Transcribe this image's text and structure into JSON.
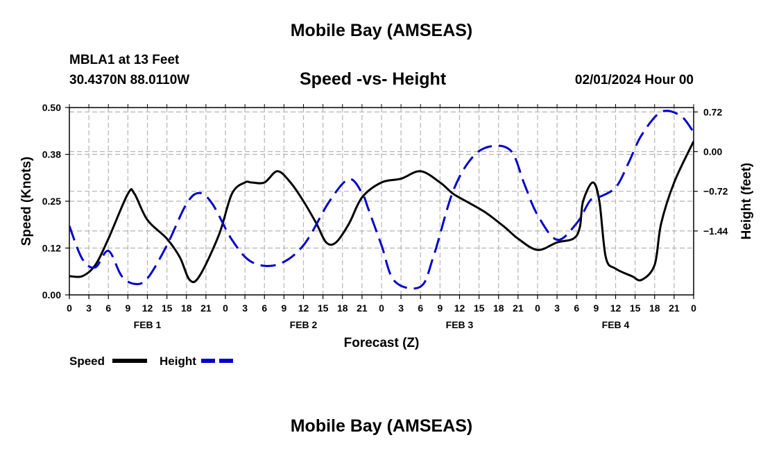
{
  "header": {
    "title": "Mobile Bay (AMSEAS)",
    "station": "MBLA1 at 13 Feet",
    "coordinates": "30.4370N  88.0110W",
    "subtitle": "Speed -vs- Height",
    "run_time": "02/01/2024 Hour 00"
  },
  "footer": {
    "title": "Mobile Bay (AMSEAS)"
  },
  "colors": {
    "speed": "#000000",
    "height": "#0000cc",
    "grid": "#b4b4b4"
  },
  "chart_data": {
    "type": "line",
    "title": "Speed -vs- Height",
    "xlabel": "Forecast (Z)",
    "ylabel": "Speed (Knots)",
    "y2label": "Height (feet)",
    "x_range_hours": [
      0,
      96
    ],
    "x_tick_labels": [
      "0",
      "3",
      "6",
      "9",
      "12",
      "15",
      "18",
      "21",
      "0",
      "3",
      "6",
      "9",
      "12",
      "15",
      "18",
      "21",
      "0",
      "3",
      "6",
      "9",
      "12",
      "15",
      "18",
      "21",
      "0",
      "3",
      "6",
      "9",
      "12",
      "15",
      "18",
      "21",
      "0"
    ],
    "day_labels": [
      {
        "label": "FEB 1",
        "hour": 12
      },
      {
        "label": "FEB 2",
        "hour": 36
      },
      {
        "label": "FEB 3",
        "hour": 60
      },
      {
        "label": "FEB 4",
        "hour": 84
      }
    ],
    "ylim": [
      0,
      0.5
    ],
    "y_ticks": [
      0.0,
      0.125,
      0.25,
      0.375,
      0.5
    ],
    "y_tick_labels": [
      "0.00",
      "0.12",
      "0.25",
      "0.38",
      "0.50"
    ],
    "y2lim": [
      -2.6,
      0.8
    ],
    "y2_ticks": [
      -1.44,
      -0.72,
      0.0,
      0.72
    ],
    "y2_tick_labels": [
      "−1.44",
      "−0.72",
      "0.00",
      "0.72"
    ],
    "series": [
      {
        "name": "Speed",
        "axis": "left",
        "style": "solid",
        "x": [
          0,
          2,
          4,
          6,
          9,
          10,
          12,
          15,
          17,
          18.5,
          20,
          23,
          25,
          27,
          28,
          30,
          32,
          34,
          36,
          38,
          39.5,
          41,
          43,
          45,
          48,
          51,
          54,
          57,
          59,
          61,
          64,
          67,
          69,
          72,
          75,
          77.5,
          78.5,
          79,
          80.5,
          81.5,
          82.5,
          84,
          86.5,
          88,
          90,
          91,
          93,
          96
        ],
        "values": [
          0.05,
          0.05,
          0.08,
          0.15,
          0.27,
          0.27,
          0.2,
          0.15,
          0.1,
          0.04,
          0.05,
          0.16,
          0.27,
          0.3,
          0.3,
          0.3,
          0.33,
          0.3,
          0.25,
          0.19,
          0.14,
          0.14,
          0.19,
          0.26,
          0.3,
          0.31,
          0.33,
          0.3,
          0.27,
          0.25,
          0.22,
          0.18,
          0.15,
          0.12,
          0.14,
          0.15,
          0.18,
          0.25,
          0.3,
          0.25,
          0.1,
          0.07,
          0.05,
          0.04,
          0.08,
          0.19,
          0.3,
          0.41
        ]
      },
      {
        "name": "Height",
        "axis": "right",
        "style": "dashed",
        "x": [
          0,
          2,
          4,
          6,
          8,
          10,
          12,
          15,
          18,
          20,
          22,
          25,
          28,
          32,
          36,
          40,
          43,
          45,
          46,
          48,
          50,
          54,
          56,
          59,
          62,
          65,
          68,
          70,
          72,
          75,
          78,
          80,
          81,
          84,
          86,
          88,
          91,
          94,
          96
        ],
        "values": [
          -1.35,
          -1.95,
          -2.1,
          -1.8,
          -2.25,
          -2.4,
          -2.3,
          -1.7,
          -0.95,
          -0.75,
          -0.95,
          -1.6,
          -2.0,
          -2.05,
          -1.7,
          -0.9,
          -0.5,
          -0.75,
          -1.05,
          -1.7,
          -2.35,
          -2.45,
          -1.9,
          -0.72,
          -0.1,
          0.1,
          0.0,
          -0.6,
          -1.15,
          -1.6,
          -1.3,
          -0.9,
          -0.85,
          -0.65,
          -0.2,
          0.3,
          0.72,
          0.65,
          0.35
        ]
      }
    ],
    "legend": [
      "Speed",
      "Height"
    ],
    "legend_position": "bottom-left",
    "grid": true
  }
}
